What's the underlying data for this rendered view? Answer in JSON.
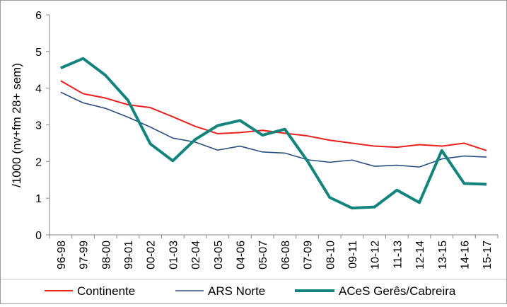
{
  "chart_data": {
    "type": "line",
    "title": "",
    "xlabel": "",
    "ylabel": "/1000 (nv+fm 28+ sem)",
    "ylim": [
      0,
      6
    ],
    "yticks": [
      0,
      1,
      2,
      3,
      4,
      5,
      6
    ],
    "grid": false,
    "legend_position": "bottom",
    "categories": [
      "96-98",
      "97-99",
      "98-00",
      "99-01",
      "00-02",
      "01-03",
      "02-04",
      "03-05",
      "04-06",
      "05-07",
      "06-08",
      "07-09",
      "08-10",
      "09-11",
      "10-12",
      "11-13",
      "12-14",
      "13-15",
      "14-16",
      "15-17"
    ],
    "series": [
      {
        "name": "Continente",
        "color": "#e8201e",
        "values": [
          4.2,
          3.85,
          3.73,
          3.55,
          3.47,
          3.22,
          2.96,
          2.76,
          2.79,
          2.85,
          2.77,
          2.7,
          2.58,
          2.5,
          2.42,
          2.39,
          2.46,
          2.42,
          2.5,
          2.3
        ]
      },
      {
        "name": "ARS Norte",
        "color": "#2b4d7e",
        "values": [
          3.89,
          3.6,
          3.45,
          3.21,
          2.94,
          2.64,
          2.53,
          2.31,
          2.42,
          2.26,
          2.23,
          2.05,
          1.98,
          2.04,
          1.87,
          1.9,
          1.85,
          2.07,
          2.15,
          2.12
        ]
      },
      {
        "name": "ACeS Gerês/Cabreira",
        "color": "#12847b",
        "values": [
          4.55,
          4.81,
          4.35,
          3.67,
          2.48,
          2.02,
          2.6,
          2.98,
          3.12,
          2.72,
          2.88,
          2.02,
          1.02,
          0.73,
          0.76,
          1.22,
          0.88,
          2.3,
          1.4,
          1.38
        ]
      }
    ]
  }
}
